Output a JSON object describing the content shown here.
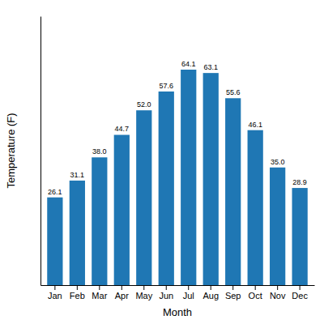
{
  "chart_data": {
    "type": "bar",
    "categories": [
      "Jan",
      "Feb",
      "Mar",
      "Apr",
      "May",
      "Jun",
      "Jul",
      "Aug",
      "Sep",
      "Oct",
      "Nov",
      "Dec"
    ],
    "values": [
      26.1,
      31.1,
      38.0,
      44.7,
      52.0,
      57.6,
      64.1,
      63.1,
      55.6,
      46.1,
      35.0,
      28.9
    ],
    "value_labels": [
      "26.1",
      "31.1",
      "38.0",
      "44.7",
      "52.0",
      "57.6",
      "64.1",
      "63.1",
      "55.6",
      "46.1",
      "35.0",
      "28.9"
    ],
    "data_labels": true,
    "x_label": "Month",
    "y_label": "Temperature (F)",
    "ylim": [
      0,
      80
    ],
    "tick_labels": "x"
  }
}
